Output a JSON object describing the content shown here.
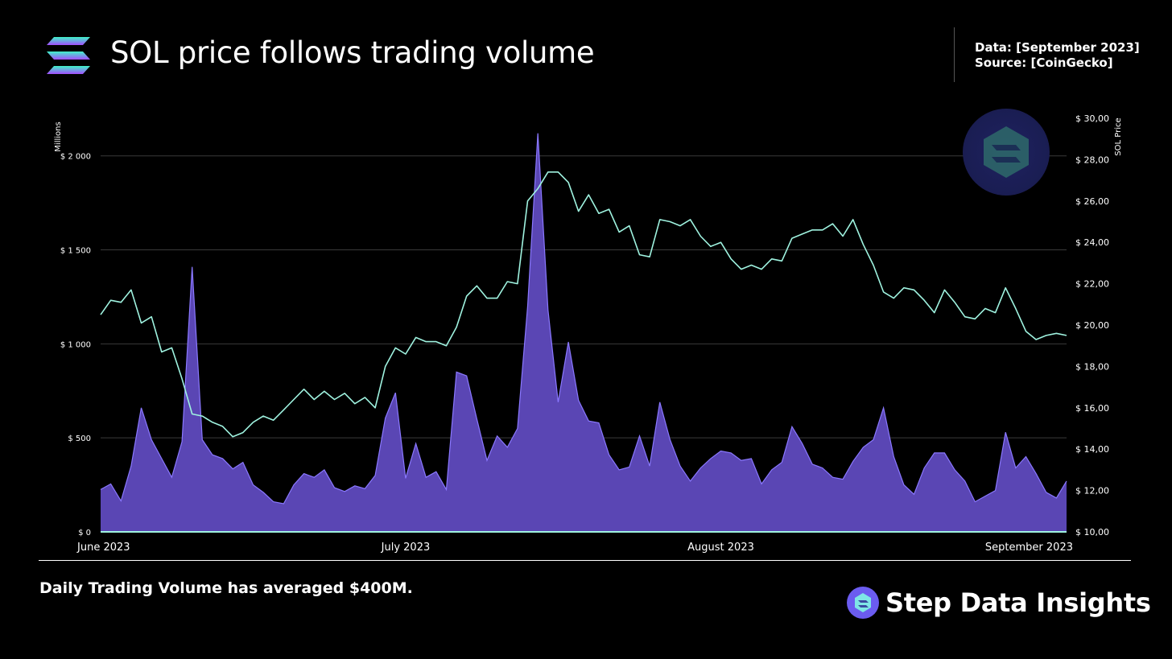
{
  "header": {
    "title": "SOL price follows trading volume",
    "data_label": "Data: [September 2023]",
    "source_label": "Source: [CoinGecko]"
  },
  "footer": {
    "note": "Daily Trading Volume has averaged $400M.",
    "brand": "Step Data Insights"
  },
  "colors": {
    "volume_fill": "#5a46b4",
    "volume_stroke": "#8a78ff",
    "price_line": "#9ff3e0",
    "grid": "#3a3a3a",
    "baseline": "#9ff3e0"
  },
  "chart_data": {
    "type": "area",
    "title": "",
    "ylabel_left": "Millions",
    "ylabel_right": "SOL Price",
    "y_left_range": [
      0,
      2200
    ],
    "y_right_range": [
      10,
      30
    ],
    "y_left_ticks": [
      {
        "value": 0,
        "label": "$ 0"
      },
      {
        "value": 500,
        "label": "$ 500"
      },
      {
        "value": 1000,
        "label": "$ 1 000"
      },
      {
        "value": 1500,
        "label": "$ 1 500"
      },
      {
        "value": 2000,
        "label": "$ 2 000"
      }
    ],
    "y_right_ticks": [
      {
        "value": 10,
        "label": "$ 10,00"
      },
      {
        "value": 12,
        "label": "$ 12,00"
      },
      {
        "value": 14,
        "label": "$ 14,00"
      },
      {
        "value": 16,
        "label": "$ 16,00"
      },
      {
        "value": 18,
        "label": "$ 18,00"
      },
      {
        "value": 20,
        "label": "$ 20,00"
      },
      {
        "value": 22,
        "label": "$ 22,00"
      },
      {
        "value": 24,
        "label": "$ 24,00"
      },
      {
        "value": 26,
        "label": "$ 26,00"
      },
      {
        "value": 28,
        "label": "$ 28,00"
      },
      {
        "value": 30,
        "label": "$ 30,00"
      }
    ],
    "x_ticks": [
      {
        "index": 0,
        "label": "June 2023"
      },
      {
        "index": 30,
        "label": "July 2023"
      },
      {
        "index": 61,
        "label": "August 2023"
      },
      {
        "index": 92,
        "label": "September 2023"
      }
    ],
    "x_start": "2023-06-01",
    "x_end": "2023-09-01",
    "grid": true,
    "series": [
      {
        "name": "",
        "kind": "area",
        "axis": "left",
        "values": [
          225,
          255,
          165,
          350,
          660,
          490,
          390,
          290,
          480,
          1410,
          490,
          410,
          390,
          335,
          370,
          250,
          210,
          160,
          150,
          250,
          310,
          290,
          330,
          235,
          215,
          245,
          230,
          300,
          605,
          740,
          285,
          470,
          290,
          320,
          225,
          850,
          830,
          600,
          380,
          510,
          450,
          550,
          1200,
          2120,
          1180,
          690,
          1010,
          700,
          590,
          580,
          410,
          330,
          345,
          510,
          350,
          690,
          490,
          350,
          270,
          340,
          390,
          430,
          420,
          380,
          390,
          255,
          330,
          370,
          560,
          470,
          360,
          340,
          290,
          280,
          375,
          450,
          490,
          660,
          400,
          250,
          200,
          340,
          420,
          420,
          330,
          270,
          160,
          190,
          220,
          530,
          340,
          400,
          310,
          210,
          180,
          270
        ]
      },
      {
        "name": "",
        "kind": "line",
        "axis": "right",
        "values": [
          20.5,
          21.2,
          21.1,
          21.7,
          20.1,
          20.4,
          18.7,
          18.9,
          17.4,
          15.7,
          15.6,
          15.3,
          15.1,
          14.6,
          14.8,
          15.3,
          15.6,
          15.4,
          15.9,
          16.4,
          16.9,
          16.4,
          16.8,
          16.4,
          16.7,
          16.2,
          16.5,
          16.0,
          18.0,
          18.9,
          18.6,
          19.4,
          19.2,
          19.2,
          19.0,
          19.9,
          21.4,
          21.9,
          21.3,
          21.3,
          22.1,
          22.0,
          26.0,
          26.6,
          27.4,
          27.4,
          26.9,
          25.5,
          26.3,
          25.4,
          25.6,
          24.5,
          24.8,
          23.4,
          23.3,
          25.1,
          25.0,
          24.8,
          25.1,
          24.3,
          23.8,
          24.0,
          23.2,
          22.7,
          22.9,
          22.7,
          23.2,
          23.1,
          24.2,
          24.4,
          24.6,
          24.6,
          24.9,
          24.3,
          25.1,
          23.9,
          22.9,
          21.6,
          21.3,
          21.8,
          21.7,
          21.2,
          20.6,
          21.7,
          21.1,
          20.4,
          20.3,
          20.8,
          20.6,
          21.8,
          20.8,
          19.7,
          19.3,
          19.5,
          19.6,
          19.5
        ]
      }
    ]
  }
}
